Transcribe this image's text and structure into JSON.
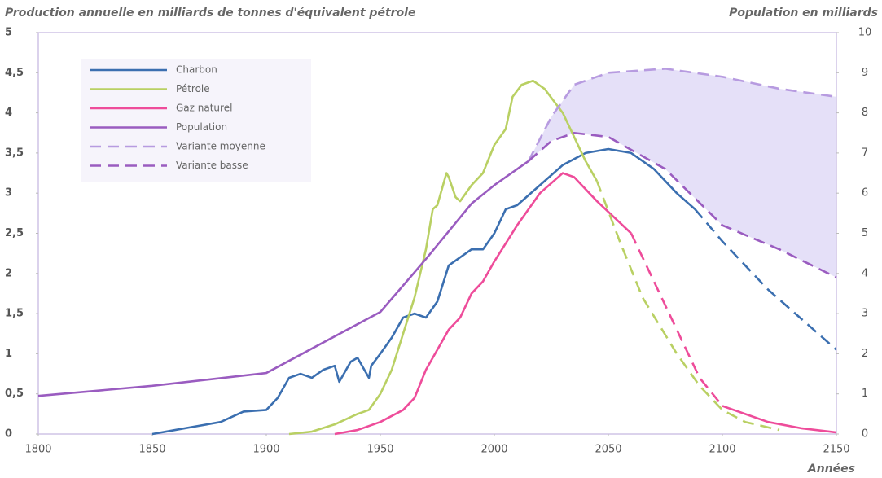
{
  "chart_data": {
    "type": "line",
    "title": "Production annuelle en milliards de tonnes d'équivalent pétrole",
    "y2_label": "Population en milliards",
    "x_label": "Années",
    "xlim": [
      1800,
      2150
    ],
    "xticks": [
      1800,
      1850,
      1900,
      1950,
      2000,
      2050,
      2100,
      2150
    ],
    "ylim": [
      0,
      5
    ],
    "yticks": [
      0,
      {
        "value": 0.5,
        "label": "0,5"
      },
      1,
      {
        "value": 1.5,
        "label": "1,5"
      },
      2,
      {
        "value": 2.5,
        "label": "2,5"
      },
      3,
      {
        "value": 3.5,
        "label": "3,5"
      },
      4,
      {
        "value": 4.5,
        "label": "4,5"
      },
      5
    ],
    "y2lim": [
      0,
      10
    ],
    "y2ticks": [
      0,
      1,
      2,
      3,
      4,
      5,
      6,
      7,
      8,
      9,
      10
    ],
    "series": [
      {
        "name": "Charbon",
        "color": "#3b6fb0",
        "x": [
          1850,
          1860,
          1870,
          1880,
          1890,
          1900,
          1905,
          1910,
          1915,
          1920,
          1925,
          1930,
          1932,
          1937,
          1940,
          1945,
          1946,
          1950,
          1955,
          1960,
          1965,
          1970,
          1975,
          1980,
          1985,
          1990,
          1995,
          2000,
          2005,
          2010,
          2020,
          2030,
          2040,
          2050,
          2060,
          2070,
          2080,
          2088
        ],
        "values": [
          0,
          0.05,
          0.1,
          0.15,
          0.28,
          0.3,
          0.45,
          0.7,
          0.75,
          0.7,
          0.8,
          0.85,
          0.65,
          0.9,
          0.95,
          0.7,
          0.85,
          1.0,
          1.2,
          1.45,
          1.5,
          1.45,
          1.65,
          2.1,
          2.2,
          2.3,
          2.3,
          2.5,
          2.8,
          2.85,
          3.1,
          3.35,
          3.5,
          3.55,
          3.5,
          3.3,
          3.0,
          2.8
        ]
      },
      {
        "name": "Pétrole",
        "color": "#b9d063",
        "x": [
          1910,
          1920,
          1930,
          1940,
          1945,
          1950,
          1955,
          1960,
          1965,
          1970,
          1973,
          1975,
          1979,
          1980,
          1983,
          1985,
          1990,
          1995,
          2000,
          2005,
          2008,
          2012,
          2017,
          2022,
          2030,
          2040,
          2045
        ],
        "values": [
          0,
          0.03,
          0.12,
          0.25,
          0.3,
          0.5,
          0.8,
          1.25,
          1.7,
          2.3,
          2.8,
          2.85,
          3.25,
          3.2,
          2.95,
          2.9,
          3.1,
          3.25,
          3.6,
          3.8,
          4.2,
          4.35,
          4.4,
          4.3,
          4.0,
          3.4,
          3.15
        ]
      },
      {
        "name": "Gaz naturel",
        "color": "#ee4c9a",
        "x": [
          1930,
          1940,
          1950,
          1960,
          1965,
          1970,
          1975,
          1980,
          1985,
          1990,
          1995,
          2000,
          2010,
          2020,
          2030,
          2035,
          2045,
          2060
        ],
        "values": [
          0,
          0.05,
          0.15,
          0.3,
          0.45,
          0.8,
          1.05,
          1.3,
          1.45,
          1.75,
          1.9,
          2.15,
          2.6,
          3.0,
          3.25,
          3.2,
          2.9,
          2.5
        ]
      },
      {
        "name": "Population",
        "color": "#9a5cc0",
        "axis": "y2",
        "x": [
          1800,
          1850,
          1900,
          1950,
          1970,
          1990,
          2000,
          2015
        ],
        "values": [
          0.95,
          1.2,
          1.52,
          3.04,
          4.36,
          5.74,
          6.2,
          6.8
        ]
      },
      {
        "name": "Variante moyenne",
        "color": "#b79be0",
        "axis": "y2",
        "dashed": true,
        "x": [
          2015,
          2025,
          2035,
          2050,
          2075,
          2100,
          2125,
          2150
        ],
        "values": [
          6.8,
          7.9,
          8.7,
          9.0,
          9.1,
          8.9,
          8.6,
          8.4
        ]
      },
      {
        "name": "Variante basse",
        "color": "#9a5cc0",
        "axis": "y2",
        "dashed": true,
        "x": [
          2015,
          2025,
          2035,
          2050,
          2075,
          2100,
          2125,
          2150
        ],
        "values": [
          6.8,
          7.3,
          7.5,
          7.4,
          6.6,
          5.2,
          4.6,
          3.9
        ]
      },
      {
        "color": "#3b6fb0",
        "dashed": true,
        "x": [
          2088,
          2100,
          2120,
          2140,
          2150
        ],
        "values": [
          2.8,
          2.4,
          1.8,
          1.3,
          1.05
        ]
      },
      {
        "color": "#b9d063",
        "dashed": true,
        "x": [
          2045,
          2055,
          2065,
          2080,
          2090,
          2100,
          2110,
          2125
        ],
        "values": [
          3.15,
          2.4,
          1.7,
          1.0,
          0.6,
          0.3,
          0.15,
          0.05
        ]
      },
      {
        "color": "#ee4c9a",
        "dashed": true,
        "x": [
          2060,
          2070,
          2080,
          2090,
          2100
        ],
        "values": [
          2.5,
          1.9,
          1.3,
          0.7,
          0.35
        ]
      },
      {
        "color": "#ee4c9a",
        "x": [
          2100,
          2110,
          2120,
          2135,
          2150
        ],
        "values": [
          0.35,
          0.25,
          0.15,
          0.07,
          0.02
        ]
      }
    ]
  }
}
